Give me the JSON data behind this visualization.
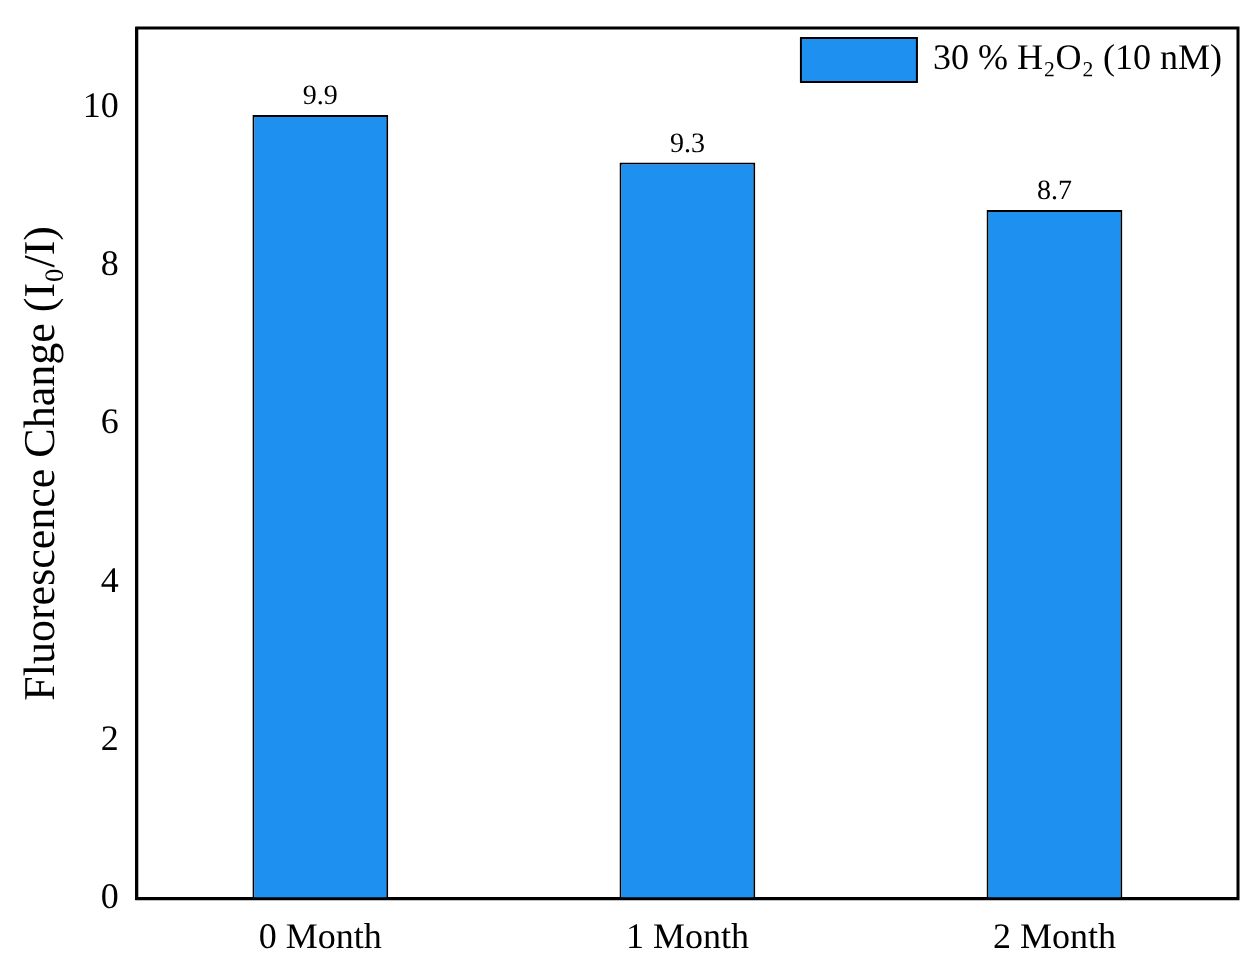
{
  "chart_data": {
    "type": "bar",
    "ylabel": "Fluorescence Change (I₀/I)",
    "categories": [
      "0 Month",
      "1 Month",
      "2 Month"
    ],
    "series": [
      {
        "name": "30 % H₂O₂ (10 nM)",
        "color": "#1e90f0",
        "values": [
          9.9,
          9.3,
          8.7
        ]
      }
    ],
    "ylim": [
      0,
      11
    ],
    "yticks": [
      0,
      2,
      4,
      6,
      8,
      10
    ],
    "grid": false,
    "legend": "top right",
    "data_labels": true
  }
}
